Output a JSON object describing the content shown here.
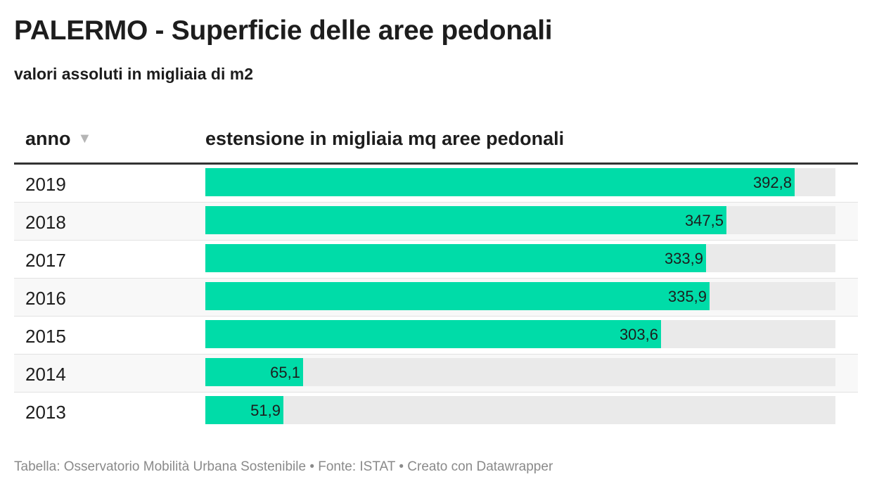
{
  "header": {
    "title": "PALERMO - Superficie delle aree pedonali",
    "subtitle": "valori assoluti in migliaia di m2"
  },
  "table": {
    "col_year": "anno",
    "sort_icon": "▼",
    "col_value": "estensione in migliaia mq aree pedonali"
  },
  "chart_data": {
    "type": "bar",
    "orientation": "horizontal",
    "title": "PALERMO - Superficie delle aree pedonali",
    "subtitle": "valori assoluti in migliaia di m2",
    "categories": [
      "2019",
      "2018",
      "2017",
      "2016",
      "2015",
      "2014",
      "2013"
    ],
    "values": [
      392.8,
      347.5,
      333.9,
      335.9,
      303.6,
      65.1,
      51.9
    ],
    "value_labels": [
      "392,8",
      "347,5",
      "333,9",
      "335,9",
      "303,6",
      "65,1",
      "51,9"
    ],
    "xlim": [
      0,
      420
    ],
    "grid": false,
    "bar_color": "#00dca8",
    "track_color": "#eaeaea"
  },
  "footer": {
    "text": "Tabella: Osservatorio Mobilità Urbana Sostenibile • Fonte: ISTAT • Creato con Datawrapper"
  }
}
